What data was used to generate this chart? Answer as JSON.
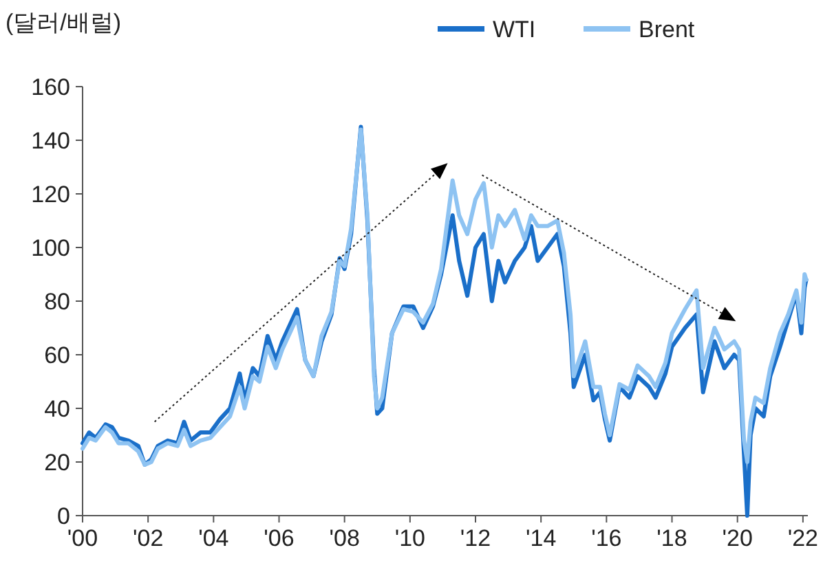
{
  "chart_data": {
    "type": "line",
    "ylabel": "(달러/배럴)",
    "legend": "top right",
    "grid": false,
    "marker": "none",
    "line_style": "solid",
    "x": [
      2000.0,
      2000.2,
      2000.4,
      2000.7,
      2000.9,
      2001.1,
      2001.4,
      2001.7,
      2001.9,
      2002.1,
      2002.3,
      2002.6,
      2002.9,
      2003.1,
      2003.3,
      2003.6,
      2003.9,
      2004.2,
      2004.5,
      2004.8,
      2004.95,
      2005.2,
      2005.4,
      2005.65,
      2005.9,
      2006.1,
      2006.55,
      2006.8,
      2007.05,
      2007.3,
      2007.6,
      2007.85,
      2008.0,
      2008.2,
      2008.5,
      2008.7,
      2008.9,
      2009.0,
      2009.15,
      2009.45,
      2009.8,
      2010.1,
      2010.4,
      2010.7,
      2010.95,
      2011.3,
      2011.5,
      2011.75,
      2012.0,
      2012.25,
      2012.5,
      2012.7,
      2012.9,
      2013.2,
      2013.5,
      2013.7,
      2013.9,
      2014.2,
      2014.5,
      2014.7,
      2014.9,
      2015.0,
      2015.35,
      2015.6,
      2015.8,
      2015.95,
      2016.1,
      2016.4,
      2016.7,
      2016.95,
      2017.3,
      2017.5,
      2017.8,
      2018.0,
      2018.4,
      2018.75,
      2018.95,
      2019.3,
      2019.6,
      2019.9,
      2020.05,
      2020.2,
      2020.3,
      2020.4,
      2020.55,
      2020.8,
      2021.0,
      2021.3,
      2021.55,
      2021.8,
      2021.95,
      2022.05,
      2022.1
    ],
    "series": [
      {
        "name": "WTI",
        "color": "#1a6fc9",
        "values": [
          27,
          31,
          29,
          34,
          33,
          29,
          28,
          26,
          19,
          21,
          26,
          28,
          27,
          35,
          28,
          31,
          31,
          36,
          40,
          53,
          43,
          55,
          52,
          67,
          58,
          65,
          77,
          58,
          52,
          65,
          75,
          96,
          92,
          105,
          145,
          110,
          55,
          38,
          40,
          68,
          78,
          78,
          70,
          78,
          90,
          112,
          95,
          82,
          100,
          105,
          80,
          95,
          87,
          95,
          100,
          108,
          95,
          100,
          105,
          93,
          68,
          48,
          60,
          43,
          46,
          36,
          28,
          48,
          44,
          52,
          48,
          44,
          53,
          63,
          70,
          75,
          46,
          65,
          55,
          60,
          58,
          23,
          0,
          30,
          40,
          37,
          52,
          63,
          73,
          83,
          68,
          85,
          88
        ]
      },
      {
        "name": "Brent",
        "color": "#8ec3f2",
        "values": [
          25,
          29,
          28,
          33,
          31,
          27,
          27,
          24,
          19,
          20,
          25,
          27,
          26,
          32,
          26,
          28,
          29,
          33,
          37,
          48,
          40,
          52,
          50,
          63,
          55,
          62,
          74,
          58,
          52,
          67,
          76,
          95,
          93,
          107,
          144,
          112,
          52,
          40,
          44,
          68,
          77,
          76,
          72,
          79,
          92,
          125,
          112,
          105,
          118,
          124,
          100,
          112,
          108,
          114,
          103,
          112,
          108,
          108,
          110,
          98,
          75,
          52,
          65,
          48,
          48,
          38,
          30,
          49,
          47,
          56,
          52,
          48,
          57,
          68,
          77,
          84,
          55,
          70,
          62,
          65,
          62,
          28,
          20,
          35,
          44,
          42,
          55,
          68,
          75,
          84,
          72,
          90,
          88
        ]
      }
    ],
    "xlim": [
      2000,
      2022.15
    ],
    "xticks": [
      {
        "value": 2000,
        "label": "'00"
      },
      {
        "value": 2002,
        "label": "'02"
      },
      {
        "value": 2004,
        "label": "'04"
      },
      {
        "value": 2006,
        "label": "'06"
      },
      {
        "value": 2008,
        "label": "'08"
      },
      {
        "value": 2010,
        "label": "'10"
      },
      {
        "value": 2012,
        "label": "'12"
      },
      {
        "value": 2014,
        "label": "'14"
      },
      {
        "value": 2016,
        "label": "'16"
      },
      {
        "value": 2018,
        "label": "'18"
      },
      {
        "value": 2020,
        "label": "'20"
      },
      {
        "value": 2022,
        "label": "'22"
      }
    ],
    "ylim": [
      0,
      160
    ],
    "yticks": [
      0,
      20,
      40,
      60,
      80,
      100,
      120,
      140,
      160
    ]
  }
}
